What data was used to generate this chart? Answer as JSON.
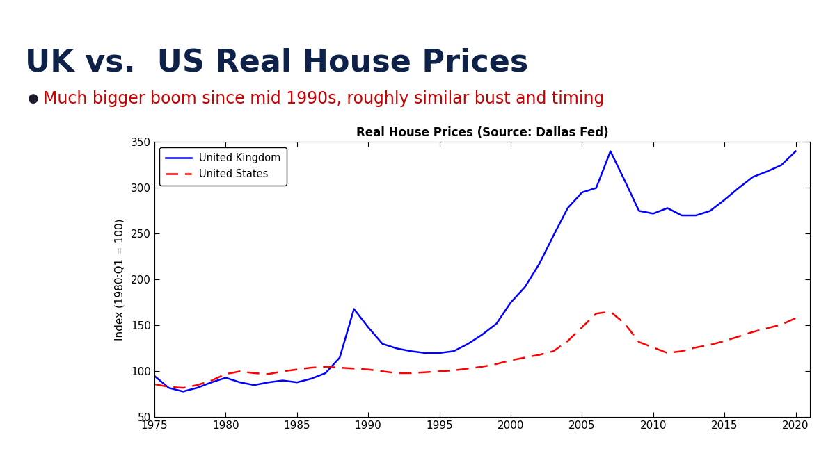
{
  "title": "Real House Prices (Source: Dallas Fed)",
  "main_title": "UK vs.  US Real House Prices",
  "subtitle": "Much bigger boom since mid 1990s, roughly similar bust and timing",
  "ylabel": "Index (1980:Q1 = 100)",
  "ylim": [
    50,
    350
  ],
  "yticks": [
    50,
    100,
    150,
    200,
    250,
    300,
    350
  ],
  "xlim": [
    1975,
    2021
  ],
  "xticks": [
    1975,
    1980,
    1985,
    1990,
    1995,
    2000,
    2005,
    2010,
    2015,
    2020
  ],
  "bg_color": "#ffffff",
  "header_color": "#0d2149",
  "subtitle_color": "#cc0000",
  "top_bar_color": "#0d2149",
  "uk_years": [
    1975,
    1976,
    1977,
    1978,
    1979,
    1980,
    1981,
    1982,
    1983,
    1984,
    1985,
    1986,
    1987,
    1988,
    1989,
    1990,
    1991,
    1992,
    1993,
    1994,
    1995,
    1996,
    1997,
    1998,
    1999,
    2000,
    2001,
    2002,
    2003,
    2004,
    2005,
    2006,
    2007,
    2008,
    2009,
    2010,
    2011,
    2012,
    2013,
    2014,
    2015,
    2016,
    2017,
    2018,
    2019,
    2020
  ],
  "uk_values": [
    95,
    82,
    78,
    82,
    88,
    93,
    88,
    85,
    88,
    90,
    88,
    92,
    98,
    115,
    168,
    148,
    130,
    125,
    122,
    120,
    120,
    122,
    130,
    140,
    152,
    175,
    192,
    217,
    248,
    278,
    295,
    300,
    340,
    308,
    275,
    272,
    278,
    270,
    270,
    275,
    287,
    300,
    312,
    318,
    325,
    340
  ],
  "us_years": [
    1975,
    1976,
    1977,
    1978,
    1979,
    1980,
    1981,
    1982,
    1983,
    1984,
    1985,
    1986,
    1987,
    1988,
    1989,
    1990,
    1991,
    1992,
    1993,
    1994,
    1995,
    1996,
    1997,
    1998,
    1999,
    2000,
    2001,
    2002,
    2003,
    2004,
    2005,
    2006,
    2007,
    2008,
    2009,
    2010,
    2011,
    2012,
    2013,
    2014,
    2015,
    2016,
    2017,
    2018,
    2019,
    2020
  ],
  "us_values": [
    86,
    83,
    82,
    85,
    90,
    97,
    100,
    98,
    97,
    100,
    102,
    104,
    105,
    104,
    103,
    102,
    100,
    98,
    98,
    99,
    100,
    101,
    103,
    105,
    108,
    112,
    115,
    118,
    122,
    133,
    148,
    163,
    165,
    152,
    132,
    126,
    120,
    122,
    126,
    129,
    133,
    138,
    143,
    147,
    151,
    158
  ]
}
